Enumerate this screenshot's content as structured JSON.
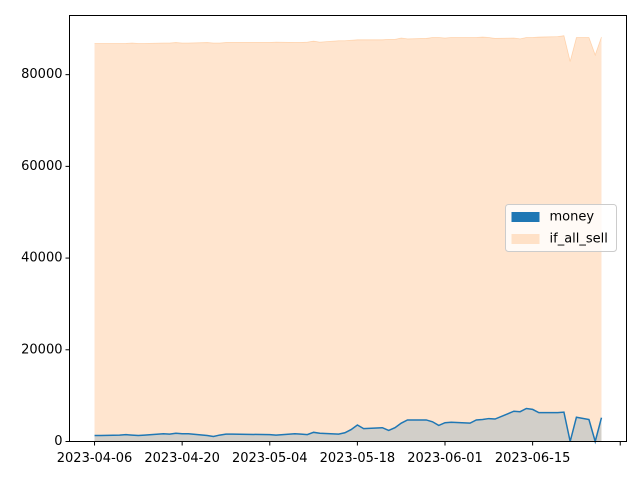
{
  "chart_data": {
    "type": "area",
    "x": [
      "2023-04-06",
      "2023-04-07",
      "2023-04-10",
      "2023-04-11",
      "2023-04-12",
      "2023-04-13",
      "2023-04-14",
      "2023-04-17",
      "2023-04-18",
      "2023-04-19",
      "2023-04-20",
      "2023-04-21",
      "2023-04-24",
      "2023-04-25",
      "2023-04-26",
      "2023-04-27",
      "2023-04-28",
      "2023-05-04",
      "2023-05-05",
      "2023-05-08",
      "2023-05-09",
      "2023-05-10",
      "2023-05-11",
      "2023-05-12",
      "2023-05-15",
      "2023-05-16",
      "2023-05-17",
      "2023-05-18",
      "2023-05-19",
      "2023-05-22",
      "2023-05-23",
      "2023-05-24",
      "2023-05-25",
      "2023-05-26",
      "2023-05-29",
      "2023-05-30",
      "2023-05-31",
      "2023-06-01",
      "2023-06-02",
      "2023-06-05",
      "2023-06-06",
      "2023-06-07",
      "2023-06-08",
      "2023-06-09",
      "2023-06-12",
      "2023-06-13",
      "2023-06-14",
      "2023-06-15",
      "2023-06-16",
      "2023-06-19",
      "2023-06-20",
      "2023-06-21",
      "2023-06-22",
      "2023-06-24",
      "2023-06-25",
      "2023-06-26"
    ],
    "series": [
      {
        "name": "money",
        "color": "#1f77b4",
        "values": [
          1300,
          1300,
          1400,
          1500,
          1400,
          1300,
          1400,
          1700,
          1600,
          1800,
          1700,
          1700,
          1300,
          1100,
          1400,
          1600,
          1600,
          1500,
          1400,
          1700,
          1600,
          1500,
          2000,
          1800,
          1600,
          1900,
          2600,
          3600,
          2800,
          3000,
          2400,
          3000,
          4000,
          4700,
          4700,
          4300,
          3500,
          4100,
          4200,
          4000,
          4700,
          4800,
          5000,
          4900,
          6600,
          6500,
          7200,
          7000,
          6300,
          6300,
          6400,
          0,
          5300,
          4800,
          0,
          5200
        ]
      },
      {
        "name": "if_all_sell",
        "color": "#ff7f0e",
        "values": [
          86800,
          86800,
          86800,
          86800,
          86900,
          86800,
          86800,
          86900,
          86900,
          87000,
          86900,
          86900,
          87000,
          86900,
          86900,
          87000,
          87000,
          87000,
          87100,
          87000,
          87000,
          87100,
          87300,
          87100,
          87400,
          87400,
          87500,
          87600,
          87600,
          87600,
          87700,
          87700,
          88000,
          87800,
          87900,
          88100,
          88100,
          88000,
          88100,
          88100,
          88100,
          88200,
          88100,
          87900,
          88000,
          87800,
          88100,
          88100,
          88200,
          88300,
          88500,
          82900,
          88100,
          88100,
          84300,
          88200
        ]
      }
    ],
    "xlim": [
      "2023-04-02",
      "2023-06-30"
    ],
    "xticks": [
      "2023-04-06",
      "2023-04-20",
      "2023-05-04",
      "2023-05-18",
      "2023-06-01",
      "2023-06-15",
      {
        "value": "2023-06-29",
        "label": null
      }
    ],
    "ylim": [
      0,
      92900
    ],
    "yticks": [
      0,
      20000,
      40000,
      60000,
      80000
    ],
    "legend": "right"
  }
}
